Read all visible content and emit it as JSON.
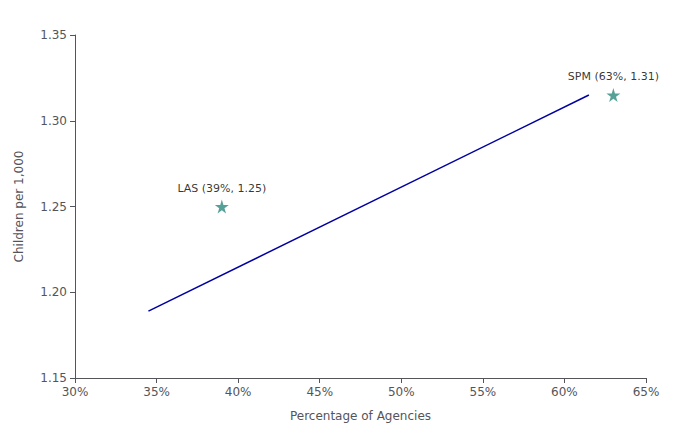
{
  "chart_data": {
    "type": "scatter",
    "xlabel": "Percentage of Agencies",
    "ylabel": "Children per 1,000",
    "xlim": [
      0.3,
      0.65
    ],
    "ylim": [
      1.15,
      1.35
    ],
    "xticks": [
      {
        "value": 0.3,
        "label": "30%"
      },
      {
        "value": 0.35,
        "label": "35%"
      },
      {
        "value": 0.4,
        "label": "40%"
      },
      {
        "value": 0.45,
        "label": "45%"
      },
      {
        "value": 0.5,
        "label": "50%"
      },
      {
        "value": 0.55,
        "label": "55%"
      },
      {
        "value": 0.6,
        "label": "60%"
      },
      {
        "value": 0.65,
        "label": "65%"
      }
    ],
    "yticks": [
      1.15,
      {
        "value": 1.2,
        "label": "1.20"
      },
      1.25,
      {
        "value": 1.3,
        "label": "1.30"
      },
      1.35
    ],
    "grid": false,
    "series": [
      {
        "type": "line",
        "color": "#0000a0",
        "line_style": "solid",
        "x": [
          0.345,
          0.615
        ],
        "values": [
          1.189,
          1.315
        ]
      },
      {
        "type": "scatter",
        "color": "#2a8a7e",
        "marker": "star",
        "x": [
          0.39,
          0.63
        ],
        "values": [
          1.25,
          1.315
        ],
        "value_labels": [
          "LAS (39%, 1.25)",
          "SPM (63%, 1.31)"
        ]
      }
    ]
  }
}
